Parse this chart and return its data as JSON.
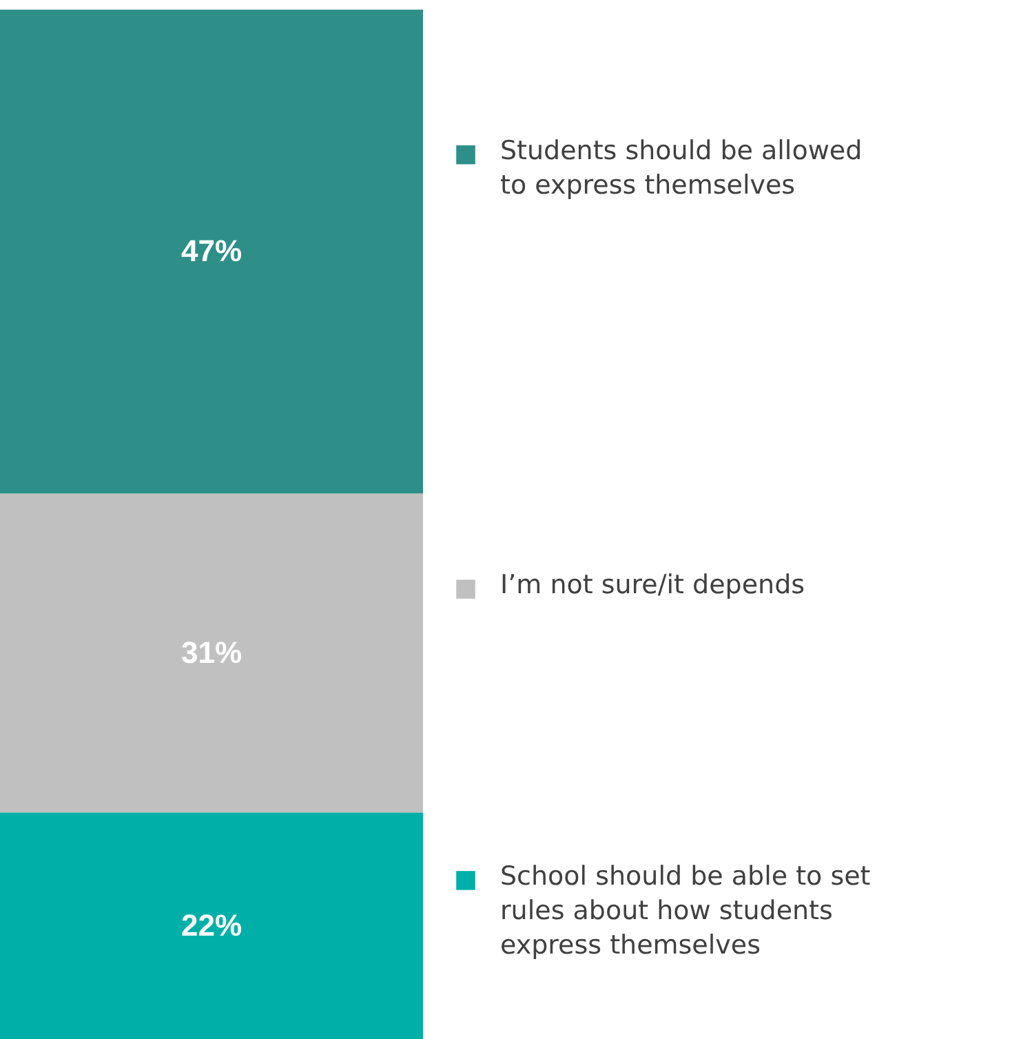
{
  "chart_data": {
    "type": "bar",
    "stacked": true,
    "categories": [
      null
    ],
    "legend": "right",
    "series": [
      {
        "name": "School should be able to set rules about how students express themselves",
        "color": "#00b0a8",
        "values": [
          22
        ],
        "value_labels": [
          "22%"
        ]
      },
      {
        "name": "I’m not sure/it depends",
        "color": "#c0c0c0",
        "values": [
          31
        ],
        "value_labels": [
          "31%"
        ]
      },
      {
        "name": "Students should be allowed to express themselves",
        "color": "#2e8f88",
        "values": [
          47
        ],
        "value_labels": [
          "47%"
        ]
      }
    ]
  }
}
